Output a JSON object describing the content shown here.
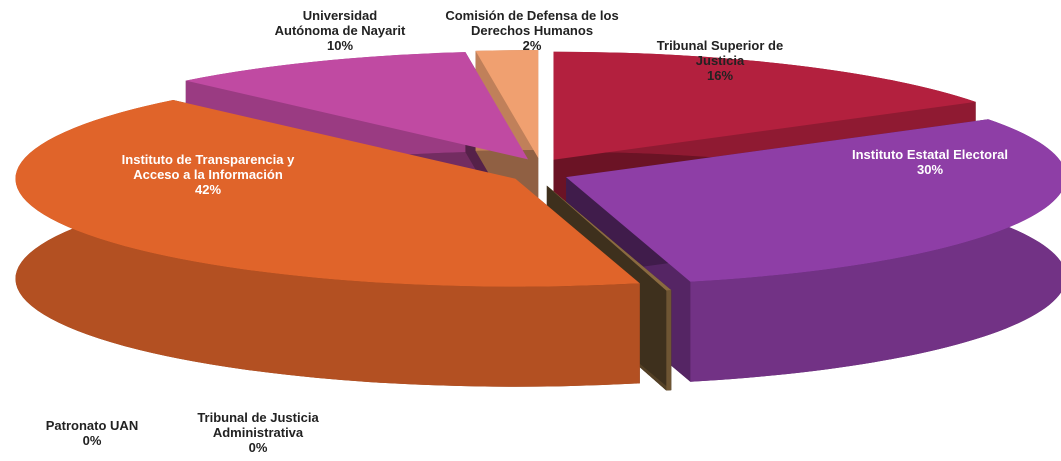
{
  "chart_data": {
    "type": "pie",
    "categories": [
      "Tribunal Superior de Justicia",
      "Instituto Estatal Electoral",
      "Tribunal de Justicia Administrativa",
      "Patronato UAN",
      "Instituto de Transparencia y Acceso a la Información",
      "Universidad Autónoma de Nayarit",
      "Comisión de Defensa de los Derechos Humanos"
    ],
    "values": [
      16,
      30,
      0,
      0,
      42,
      10,
      2
    ],
    "value_labels": [
      "16%",
      "30%",
      "0%",
      "0%",
      "42%",
      "10%",
      "2%"
    ],
    "colors": [
      "#b3203e",
      "#8e3ea6",
      "#7a5a3a",
      "#8a6a40",
      "#e0642a",
      "#c04aa2",
      "#f0a070"
    ]
  }
}
